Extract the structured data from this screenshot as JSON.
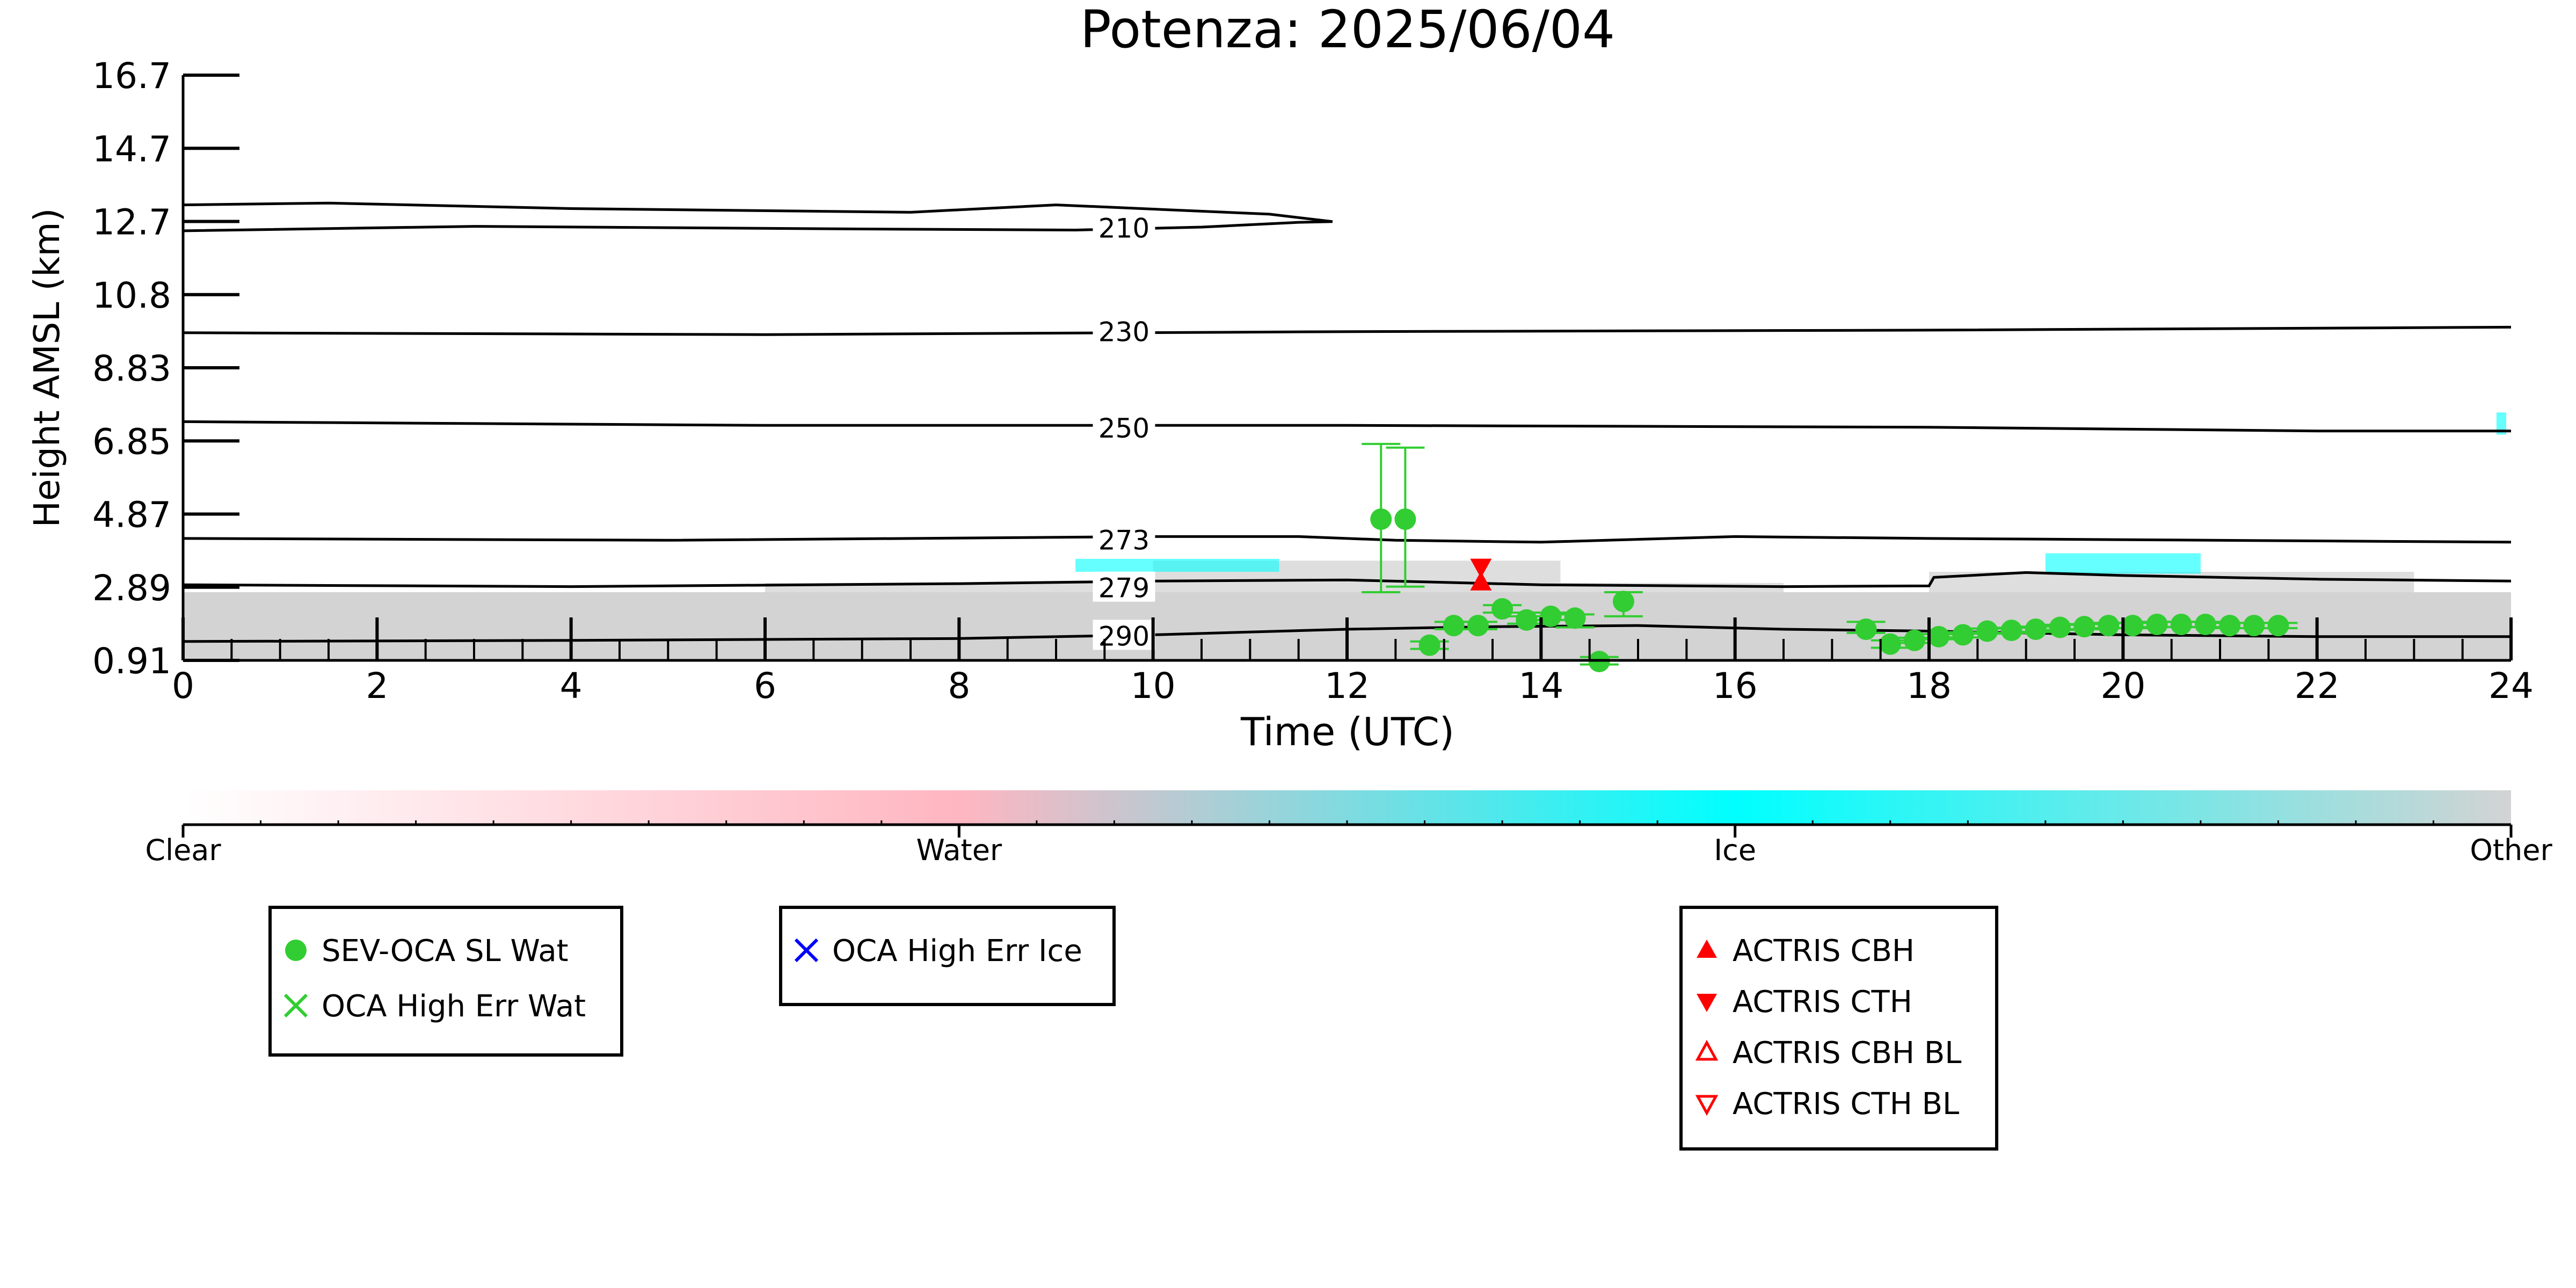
{
  "chart_data": {
    "type": "scatter",
    "title": "Potenza: 2025/06/04",
    "xlabel": "Time (UTC)",
    "ylabel": "Height AMSL (km)",
    "xlim": [
      0,
      24
    ],
    "ylim": [
      0.91,
      16.7
    ],
    "x_ticks": [
      "0",
      "2",
      "4",
      "6",
      "8",
      "10",
      "12",
      "14",
      "16",
      "18",
      "20",
      "22",
      "24"
    ],
    "y_ticks": [
      "0.91",
      "2.89",
      "4.87",
      "6.85",
      "8.83",
      "10.8",
      "12.7",
      "14.7",
      "16.7"
    ],
    "grid": false,
    "colorbar": {
      "labels": [
        "Clear",
        "Water",
        "Ice",
        "Other"
      ],
      "colors": [
        "#ffffff",
        "#ffb6c1",
        "#00ffff",
        "#d3d3d3"
      ]
    },
    "cloud_mask": {
      "other_color": "#d3d3d3",
      "ice_color": "#00ffff",
      "other_regions": [
        {
          "x0": 0.0,
          "x1": 24.0,
          "y0": 0.91,
          "y1": 2.75
        },
        {
          "x0": 6.0,
          "x1": 16.5,
          "y0": 2.75,
          "y1": 3.0
        },
        {
          "x0": 10.0,
          "x1": 14.2,
          "y0": 3.0,
          "y1": 3.6
        },
        {
          "x0": 18.0,
          "x1": 23.0,
          "y0": 2.75,
          "y1": 3.3
        }
      ],
      "ice_regions": [
        {
          "x0": 9.2,
          "x1": 11.3,
          "y0": 3.3,
          "y1": 3.65
        },
        {
          "x0": 19.2,
          "x1": 20.8,
          "y0": 3.25,
          "y1": 3.8
        },
        {
          "x0": 23.85,
          "x1": 23.95,
          "y0": 7.0,
          "y1": 7.6
        }
      ]
    },
    "contours": [
      {
        "label": "210",
        "label_x": 9.7,
        "label_y": 12.58,
        "upper": [
          [
            0,
            13.2
          ],
          [
            1.5,
            13.25
          ],
          [
            4,
            13.1
          ],
          [
            7.5,
            13.0
          ],
          [
            9.0,
            13.2
          ],
          [
            11.2,
            12.95
          ],
          [
            11.85,
            12.75
          ]
        ],
        "lower": [
          [
            0,
            12.5
          ],
          [
            3,
            12.62
          ],
          [
            7,
            12.55
          ],
          [
            9.2,
            12.52
          ],
          [
            10.5,
            12.6
          ],
          [
            11.5,
            12.73
          ],
          [
            11.85,
            12.75
          ]
        ]
      },
      {
        "label": "230",
        "label_x": 9.7,
        "label_y": 9.78,
        "points": [
          [
            0,
            9.75
          ],
          [
            6,
            9.7
          ],
          [
            12,
            9.78
          ],
          [
            18,
            9.82
          ],
          [
            24,
            9.9
          ]
        ]
      },
      {
        "label": "250",
        "label_x": 9.7,
        "label_y": 7.18,
        "points": [
          [
            0,
            7.35
          ],
          [
            6,
            7.25
          ],
          [
            12,
            7.25
          ],
          [
            18,
            7.2
          ],
          [
            22,
            7.1
          ],
          [
            24,
            7.1
          ]
        ]
      },
      {
        "label": "273",
        "label_x": 9.7,
        "label_y": 4.16,
        "points": [
          [
            0,
            4.2
          ],
          [
            5,
            4.15
          ],
          [
            10,
            4.25
          ],
          [
            11.5,
            4.25
          ],
          [
            12.5,
            4.15
          ],
          [
            14,
            4.1
          ],
          [
            16,
            4.25
          ],
          [
            18,
            4.2
          ],
          [
            24,
            4.1
          ]
        ]
      },
      {
        "label": "279",
        "label_x": 9.7,
        "label_y": 2.87,
        "points": [
          [
            0,
            2.95
          ],
          [
            4,
            2.9
          ],
          [
            8,
            2.98
          ],
          [
            10,
            3.05
          ],
          [
            12,
            3.08
          ],
          [
            14,
            2.95
          ],
          [
            16.5,
            2.9
          ],
          [
            18,
            2.92
          ],
          [
            18.05,
            3.15
          ],
          [
            19,
            3.28
          ],
          [
            20,
            3.2
          ],
          [
            22,
            3.1
          ],
          [
            24,
            3.05
          ]
        ]
      },
      {
        "label": "290",
        "label_x": 9.7,
        "label_y": 1.57,
        "points": [
          [
            0,
            1.42
          ],
          [
            4,
            1.45
          ],
          [
            8,
            1.5
          ],
          [
            10,
            1.6
          ],
          [
            12,
            1.75
          ],
          [
            13.5,
            1.82
          ],
          [
            15,
            1.85
          ],
          [
            16.5,
            1.75
          ],
          [
            18,
            1.7
          ],
          [
            20,
            1.6
          ],
          [
            22,
            1.55
          ],
          [
            24,
            1.55
          ]
        ]
      }
    ],
    "series": [
      {
        "name": "SEV-OCA SL Wat",
        "color": "#32cd32",
        "marker": "circle",
        "points": [
          {
            "x": 12.35,
            "y": 4.72,
            "err_low": 2.75,
            "err_high": 6.75
          },
          {
            "x": 12.6,
            "y": 4.72,
            "err_low": 2.9,
            "err_high": 6.65
          },
          {
            "x": 12.85,
            "y": 1.32,
            "err_low": 1.22,
            "err_high": 1.42
          },
          {
            "x": 13.1,
            "y": 1.85,
            "err_low": 1.75,
            "err_high": 1.95
          },
          {
            "x": 13.35,
            "y": 1.85,
            "err_low": 1.75,
            "err_high": 1.95
          },
          {
            "x": 13.6,
            "y": 2.3,
            "err_low": 2.2,
            "err_high": 2.4
          },
          {
            "x": 13.85,
            "y": 2.0,
            "err_low": 1.9,
            "err_high": 2.1
          },
          {
            "x": 14.1,
            "y": 2.1,
            "err_low": 2.0,
            "err_high": 2.2
          },
          {
            "x": 14.35,
            "y": 2.05,
            "err_low": 1.8,
            "err_high": 2.15
          },
          {
            "x": 14.6,
            "y": 0.88,
            "err_low": 0.8,
            "err_high": 1.0
          },
          {
            "x": 14.85,
            "y": 2.5,
            "err_low": 2.1,
            "err_high": 2.75
          },
          {
            "x": 17.35,
            "y": 1.75,
            "err_low": 1.65,
            "err_high": 1.95
          },
          {
            "x": 17.6,
            "y": 1.35,
            "err_low": 1.25,
            "err_high": 1.45
          },
          {
            "x": 17.85,
            "y": 1.45,
            "err_low": 1.38,
            "err_high": 1.52
          },
          {
            "x": 18.1,
            "y": 1.55,
            "err_low": 1.48,
            "err_high": 1.62
          },
          {
            "x": 18.35,
            "y": 1.6,
            "err_low": 1.53,
            "err_high": 1.67
          },
          {
            "x": 18.6,
            "y": 1.7,
            "err_low": 1.63,
            "err_high": 1.77
          },
          {
            "x": 18.85,
            "y": 1.72,
            "err_low": 1.65,
            "err_high": 1.79
          },
          {
            "x": 19.1,
            "y": 1.75,
            "err_low": 1.68,
            "err_high": 1.82
          },
          {
            "x": 19.35,
            "y": 1.8,
            "err_low": 1.73,
            "err_high": 1.87
          },
          {
            "x": 19.6,
            "y": 1.82,
            "err_low": 1.75,
            "err_high": 1.89
          },
          {
            "x": 19.85,
            "y": 1.85,
            "err_low": 1.78,
            "err_high": 1.92
          },
          {
            "x": 20.1,
            "y": 1.85,
            "err_low": 1.78,
            "err_high": 1.92
          },
          {
            "x": 20.35,
            "y": 1.88,
            "err_low": 1.81,
            "err_high": 1.95
          },
          {
            "x": 20.6,
            "y": 1.88,
            "err_low": 1.81,
            "err_high": 1.95
          },
          {
            "x": 20.85,
            "y": 1.88,
            "err_low": 1.81,
            "err_high": 1.95
          },
          {
            "x": 21.1,
            "y": 1.85,
            "err_low": 1.78,
            "err_high": 1.92
          },
          {
            "x": 21.35,
            "y": 1.85,
            "err_low": 1.78,
            "err_high": 1.92
          },
          {
            "x": 21.6,
            "y": 1.85,
            "err_low": 1.78,
            "err_high": 1.92
          }
        ]
      },
      {
        "name": "OCA High Err Wat",
        "color": "#32cd32",
        "marker": "x",
        "points": []
      },
      {
        "name": "OCA High Err Ice",
        "color": "#0000ff",
        "marker": "x",
        "points": []
      },
      {
        "name": "ACTRIS CBH",
        "color": "#ff0000",
        "marker": "triangle-up",
        "points": [
          {
            "x": 13.38,
            "y": 3.0
          }
        ]
      },
      {
        "name": "ACTRIS CTH",
        "color": "#ff0000",
        "marker": "triangle-down",
        "points": [
          {
            "x": 13.38,
            "y": 3.45
          }
        ]
      },
      {
        "name": "ACTRIS CBH BL",
        "color": "#ff0000",
        "marker": "triangle-up-open",
        "points": []
      },
      {
        "name": "ACTRIS CTH BL",
        "color": "#ff0000",
        "marker": "triangle-down-open",
        "points": []
      }
    ],
    "legend_groups": [
      [
        "SEV-OCA SL Wat",
        "OCA High Err Wat"
      ],
      [
        "OCA High Err Ice"
      ],
      [
        "ACTRIS CBH",
        "ACTRIS CTH",
        "ACTRIS CBH BL",
        "ACTRIS CTH BL"
      ]
    ]
  }
}
